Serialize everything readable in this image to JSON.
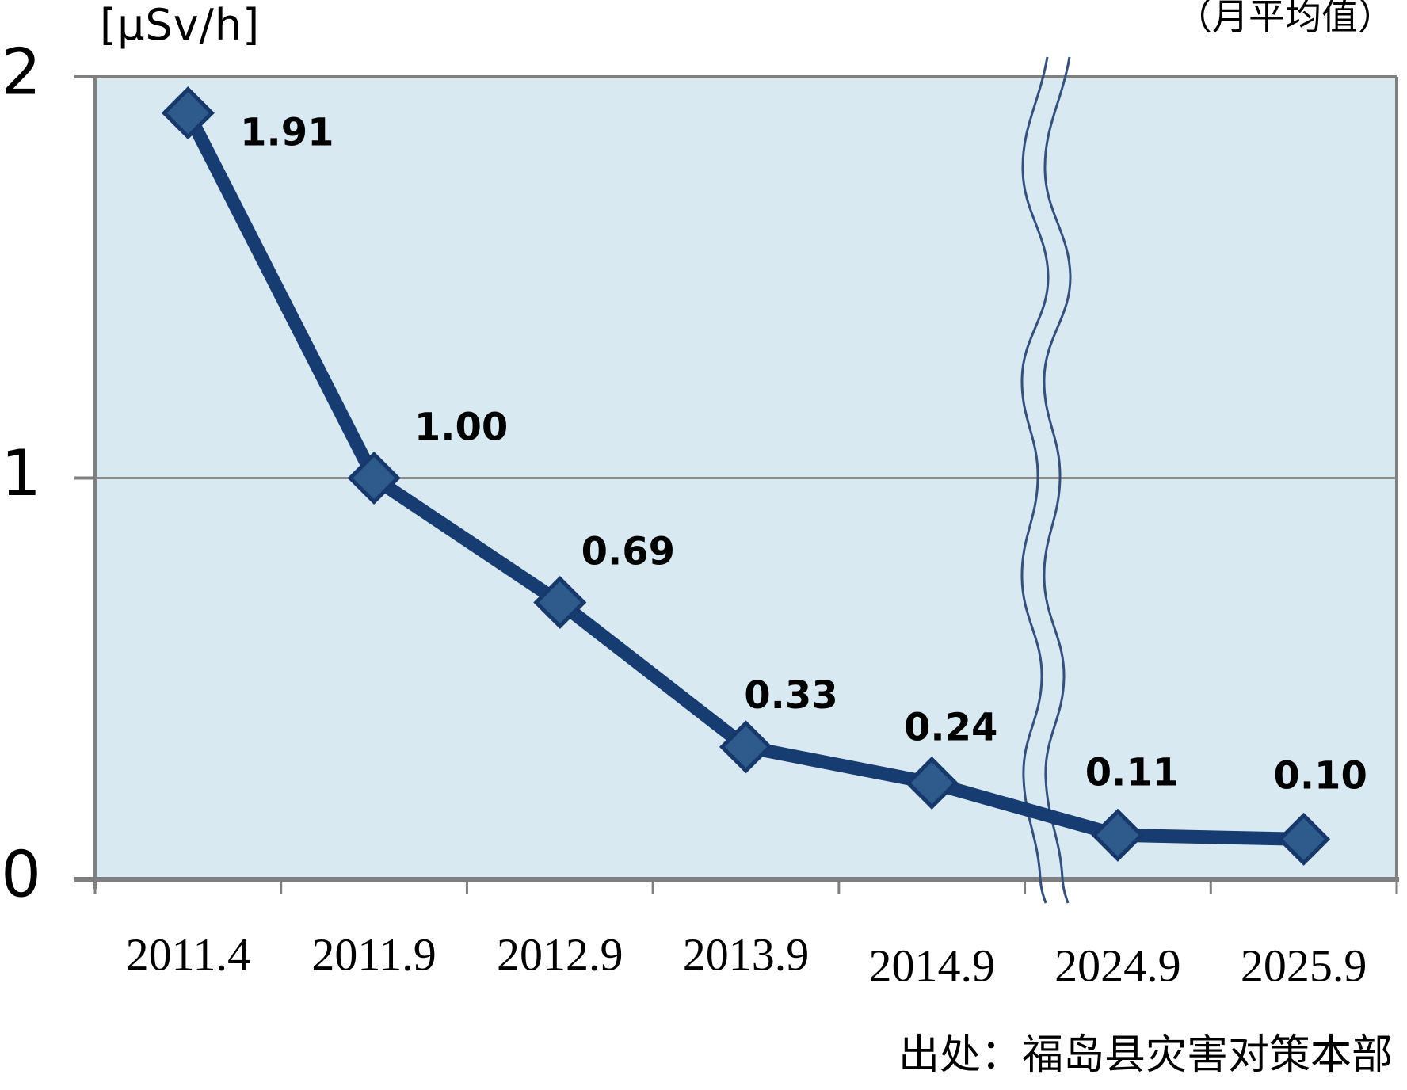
{
  "header": {
    "unit_label": "[μSv/h]",
    "period_note": "（月平均值）",
    "source_note": "出处：福岛县灾害对策本部"
  },
  "chart_data": {
    "type": "line",
    "categories": [
      "2011.4",
      "2011.9",
      "2012.9",
      "2013.9",
      "2014.9",
      "2024.9",
      "2025.9"
    ],
    "values": [
      1.91,
      1.0,
      0.69,
      0.33,
      0.24,
      0.11,
      0.1
    ],
    "data_labels": [
      "1.91",
      "1.00",
      "0.69",
      "0.33",
      "0.24",
      "0.11",
      "0.10"
    ],
    "title": "",
    "xlabel": "",
    "ylabel": "[μSv/h]",
    "ylim": [
      0,
      2
    ],
    "yticks": [
      0,
      1,
      2
    ],
    "ytick_labels": [
      "0",
      "1",
      "2"
    ],
    "grid": "single horizontal gridline at y=1",
    "legend": "none",
    "marker": "diamond",
    "axis_break": {
      "between": [
        "2014.9",
        "2024.9"
      ],
      "style": "double wavy vertical line crossing plot area"
    },
    "colors": {
      "line": "#173c72",
      "marker_fill": "#2f5a8c",
      "marker_stroke": "#16386b",
      "plot_background": "#d9e9f1",
      "axis": "#7f7f7f",
      "gridline": "#8c8c8c",
      "break_line": "#35507d",
      "text": "#000000",
      "page_background": "#ffffff"
    }
  }
}
